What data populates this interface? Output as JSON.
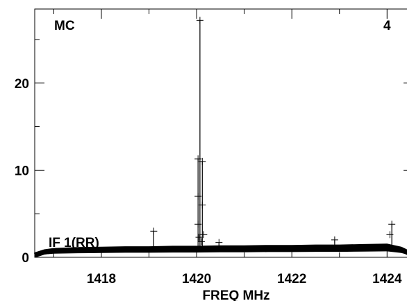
{
  "chart_data": {
    "type": "line",
    "corner_labels": {
      "top_left": "MC",
      "top_right": "4",
      "series_label": "IF 1(RR)"
    },
    "xlabel": "FREQ MHz",
    "ylabel": "",
    "xlim": [
      1416.6,
      1424.55
    ],
    "ylim": [
      0,
      28.5
    ],
    "x_ticks": [
      1418,
      1420,
      1422,
      1424
    ],
    "x_tick_labels": [
      "1418",
      "1420",
      "1422",
      "1424"
    ],
    "y_ticks": [
      0,
      10,
      20
    ],
    "y_tick_labels": [
      "0",
      "10",
      "20"
    ],
    "x_minor_ticks": [
      1417,
      1419,
      1421,
      1423
    ],
    "y_minor_ticks": [
      5,
      15,
      25
    ],
    "grid": false,
    "marker": "+",
    "color": "#000000",
    "series": [
      {
        "baseline": [
          [
            1416.6,
            0.25
          ],
          [
            1416.8,
            0.6
          ],
          [
            1417.0,
            0.75
          ],
          [
            1417.5,
            0.85
          ],
          [
            1418.0,
            0.9
          ],
          [
            1418.5,
            0.95
          ],
          [
            1419.0,
            0.95
          ],
          [
            1419.5,
            1.0
          ],
          [
            1420.0,
            1.0
          ],
          [
            1420.5,
            1.05
          ],
          [
            1421.0,
            1.05
          ],
          [
            1421.5,
            1.1
          ],
          [
            1422.0,
            1.1
          ],
          [
            1422.5,
            1.15
          ],
          [
            1423.0,
            1.15
          ],
          [
            1423.5,
            1.2
          ],
          [
            1424.0,
            1.25
          ],
          [
            1424.3,
            0.9
          ],
          [
            1424.45,
            0.5
          ],
          [
            1424.55,
            0.3
          ]
        ],
        "spikes": [
          {
            "x": 1419.1,
            "y": 3.0
          },
          {
            "x": 1420.03,
            "y": 11.3
          },
          {
            "x": 1420.07,
            "y": 27.2
          },
          {
            "x": 1420.12,
            "y": 11.0
          },
          {
            "x": 1420.47,
            "y": 1.7
          },
          {
            "x": 1422.9,
            "y": 2.0
          },
          {
            "x": 1424.1,
            "y": 3.8
          }
        ],
        "peak_markers": [
          {
            "x": 1420.03,
            "y": 3.8
          },
          {
            "x": 1420.03,
            "y": 7.0
          },
          {
            "x": 1420.05,
            "y": 2.3
          },
          {
            "x": 1420.1,
            "y": 1.8
          },
          {
            "x": 1420.12,
            "y": 6.0
          },
          {
            "x": 1420.15,
            "y": 2.6
          },
          {
            "x": 1424.06,
            "y": 2.6
          }
        ]
      }
    ]
  }
}
